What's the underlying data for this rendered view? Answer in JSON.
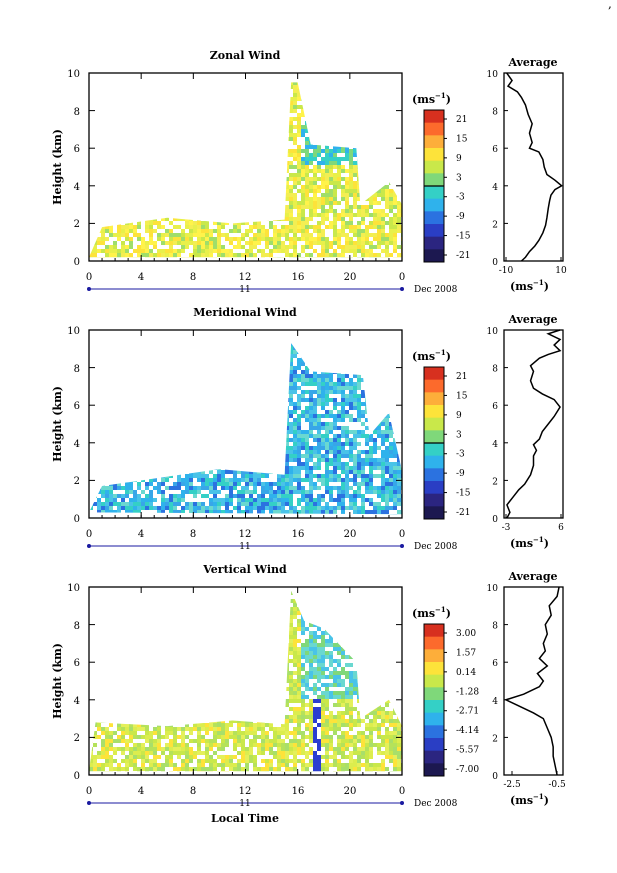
{
  "corner_mark": ",",
  "chart_data": [
    {
      "type": "heatmap",
      "title": "Zonal Wind",
      "ylabel": "Height (km)",
      "xlabel": "",
      "date_label": "Dec 2008",
      "day_label": "11",
      "x_ticks": [
        "0",
        "4",
        "8",
        "12",
        "16",
        "20",
        "0"
      ],
      "y_ticks": [
        "0",
        "2",
        "4",
        "6",
        "8",
        "10"
      ],
      "xlim": [
        0,
        24
      ],
      "ylim": [
        0,
        10
      ],
      "colorbar": {
        "unit": "(ms",
        "unit_exp": "−1",
        "ticks": [
          "21",
          "15",
          "9",
          "3",
          "-3",
          "-9",
          "-15",
          "-21"
        ]
      },
      "average": {
        "title": "Average",
        "xlabel": "(ms",
        "xlabel_exp": "−1",
        "x_ticks": [
          "-10",
          "10"
        ],
        "xlim": [
          -11,
          11
        ],
        "y_ticks": [
          "0",
          "2",
          "4",
          "6",
          "8",
          "10"
        ],
        "profile": [
          [
            -4.5,
            0
          ],
          [
            -3,
            0.2
          ],
          [
            -1.5,
            0.5
          ],
          [
            0.5,
            0.8
          ],
          [
            2,
            1.1
          ],
          [
            3.5,
            1.5
          ],
          [
            4.5,
            1.9
          ],
          [
            5,
            2.3
          ],
          [
            5.5,
            2.8
          ],
          [
            6,
            3.2
          ],
          [
            6.5,
            3.5
          ],
          [
            8,
            3.8
          ],
          [
            10.5,
            4.0
          ],
          [
            8,
            4.3
          ],
          [
            5,
            4.6
          ],
          [
            4,
            5.0
          ],
          [
            3.5,
            5.4
          ],
          [
            2,
            5.8
          ],
          [
            -1.5,
            6.0
          ],
          [
            -0.5,
            6.3
          ],
          [
            -1.5,
            6.8
          ],
          [
            -0.5,
            7.3
          ],
          [
            -2,
            7.8
          ],
          [
            -3,
            8.3
          ],
          [
            -4.5,
            8.7
          ],
          [
            -6,
            9.0
          ],
          [
            -9.5,
            9.3
          ],
          [
            -8,
            9.6
          ],
          [
            -10,
            10
          ]
        ]
      },
      "series_shape": [
        [
          0,
          0.2
        ],
        [
          1,
          1.8
        ],
        [
          6,
          2.3
        ],
        [
          11,
          2.0
        ],
        [
          15,
          2.2
        ],
        [
          15.5,
          9.5
        ],
        [
          16,
          9.5
        ],
        [
          17,
          6.2
        ],
        [
          20.5,
          6.0
        ],
        [
          20.8,
          3.0
        ],
        [
          23,
          4.2
        ],
        [
          24,
          3.0
        ],
        [
          24,
          0.2
        ]
      ]
    },
    {
      "type": "heatmap",
      "title": "Meridional Wind",
      "ylabel": "Height (km)",
      "xlabel": "",
      "date_label": "Dec 2008",
      "day_label": "11",
      "x_ticks": [
        "0",
        "4",
        "8",
        "12",
        "16",
        "20",
        "0"
      ],
      "y_ticks": [
        "0",
        "2",
        "4",
        "6",
        "8",
        "10"
      ],
      "xlim": [
        0,
        24
      ],
      "ylim": [
        0,
        10
      ],
      "colorbar": {
        "unit": "(ms",
        "unit_exp": "−1",
        "ticks": [
          "21",
          "15",
          "9",
          "3",
          "-3",
          "-9",
          "-15",
          "-21"
        ]
      },
      "average": {
        "title": "Average",
        "xlabel": "(ms",
        "xlabel_exp": "−1",
        "x_ticks": [
          "-3",
          "6"
        ],
        "xlim": [
          -3.5,
          6.5
        ],
        "y_ticks": [
          "0",
          "2",
          "4",
          "6",
          "8",
          "10"
        ],
        "profile": [
          [
            -3,
            0
          ],
          [
            -2.5,
            0.3
          ],
          [
            -3,
            0.7
          ],
          [
            -2,
            1.1
          ],
          [
            -1,
            1.5
          ],
          [
            0,
            1.8
          ],
          [
            1,
            2.3
          ],
          [
            1.5,
            2.8
          ],
          [
            1.5,
            3.3
          ],
          [
            2,
            3.6
          ],
          [
            1.5,
            3.9
          ],
          [
            2.5,
            4.2
          ],
          [
            3,
            4.6
          ],
          [
            4,
            5.0
          ],
          [
            5,
            5.4
          ],
          [
            6,
            5.9
          ],
          [
            5,
            6.3
          ],
          [
            3,
            6.6
          ],
          [
            1.5,
            6.9
          ],
          [
            1,
            7.3
          ],
          [
            1.5,
            7.8
          ],
          [
            1,
            8.1
          ],
          [
            2.5,
            8.5
          ],
          [
            4,
            8.7
          ],
          [
            6,
            8.9
          ],
          [
            5,
            9.2
          ],
          [
            6,
            9.5
          ],
          [
            4,
            9.8
          ],
          [
            6,
            10
          ]
        ]
      },
      "series_shape": [
        [
          0,
          0.3
        ],
        [
          1,
          1.7
        ],
        [
          6,
          2.2
        ],
        [
          10,
          2.6
        ],
        [
          15,
          2.3
        ],
        [
          15.5,
          9.3
        ],
        [
          16,
          8.8
        ],
        [
          17,
          7.8
        ],
        [
          21,
          7.6
        ],
        [
          21.5,
          4.4
        ],
        [
          23,
          5.6
        ],
        [
          24,
          2.5
        ],
        [
          24,
          0.2
        ]
      ]
    },
    {
      "type": "heatmap",
      "title": "Vertical Wind",
      "ylabel": "Height (km)",
      "xlabel": "Local Time",
      "date_label": "Dec 2008",
      "day_label": "11",
      "x_ticks": [
        "0",
        "4",
        "8",
        "12",
        "16",
        "20",
        "0"
      ],
      "y_ticks": [
        "0",
        "2",
        "4",
        "6",
        "8",
        "10"
      ],
      "xlim": [
        0,
        24
      ],
      "ylim": [
        0,
        10
      ],
      "colorbar": {
        "unit": "(ms",
        "unit_exp": "−1",
        "ticks": [
          "3.00",
          "1.57",
          "0.14",
          "-1.28",
          "-2.71",
          "-4.14",
          "-5.57",
          "-7.00"
        ]
      },
      "average": {
        "title": "Average",
        "xlabel": "(ms",
        "xlabel_exp": "−1",
        "x_ticks": [
          "-2.5",
          "-0.5"
        ],
        "xlim": [
          -3.0,
          0.0
        ],
        "y_ticks": [
          "0",
          "2",
          "4",
          "6",
          "8",
          "10"
        ],
        "profile": [
          [
            -0.3,
            0
          ],
          [
            -0.4,
            0.5
          ],
          [
            -0.5,
            1.0
          ],
          [
            -0.5,
            1.5
          ],
          [
            -0.6,
            2.0
          ],
          [
            -0.8,
            2.5
          ],
          [
            -1.0,
            3.0
          ],
          [
            -1.5,
            3.3
          ],
          [
            -2.3,
            3.7
          ],
          [
            -2.9,
            4.0
          ],
          [
            -2.0,
            4.3
          ],
          [
            -1.2,
            4.7
          ],
          [
            -1.0,
            5.0
          ],
          [
            -1.3,
            5.4
          ],
          [
            -0.8,
            5.8
          ],
          [
            -1.2,
            6.2
          ],
          [
            -0.9,
            6.6
          ],
          [
            -1.0,
            7.0
          ],
          [
            -0.8,
            7.5
          ],
          [
            -0.9,
            8.0
          ],
          [
            -0.6,
            8.5
          ],
          [
            -0.7,
            9.0
          ],
          [
            -0.3,
            9.5
          ],
          [
            -0.2,
            10
          ]
        ]
      },
      "series_shape": [
        [
          0,
          0.2
        ],
        [
          0.5,
          2.8
        ],
        [
          6,
          2.6
        ],
        [
          11,
          2.9
        ],
        [
          15,
          2.7
        ],
        [
          15.5,
          9.8
        ],
        [
          16.5,
          8.2
        ],
        [
          18,
          7.8
        ],
        [
          20.5,
          6.0
        ],
        [
          20.8,
          3.0
        ],
        [
          23,
          4.0
        ],
        [
          24,
          2.6
        ],
        [
          24,
          0.2
        ]
      ]
    }
  ]
}
